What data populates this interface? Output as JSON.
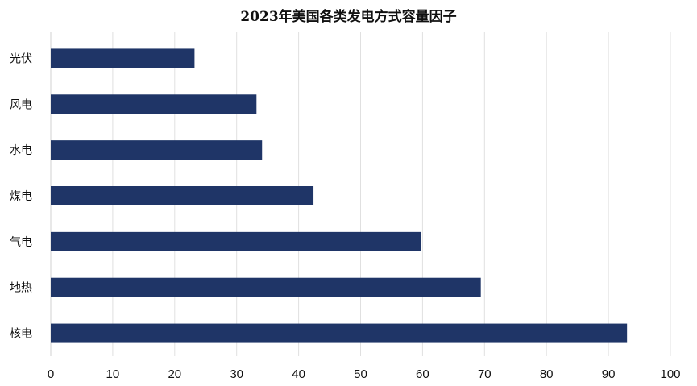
{
  "chart_data": {
    "type": "bar",
    "orientation": "horizontal",
    "title": "2023年美国各类发电方式容量因子",
    "categories": [
      "光伏",
      "风电",
      "水电",
      "煤电",
      "气电",
      "地热",
      "核电"
    ],
    "values": [
      23.2,
      33.2,
      34.1,
      42.4,
      59.7,
      69.4,
      93.0
    ],
    "xlim": [
      0,
      100
    ],
    "x_ticks": [
      0,
      10,
      20,
      30,
      40,
      50,
      60,
      70,
      80,
      90,
      100
    ],
    "xlabel": "",
    "ylabel": "",
    "grid": true,
    "legend": "none",
    "bar_color": "#1f3567"
  }
}
